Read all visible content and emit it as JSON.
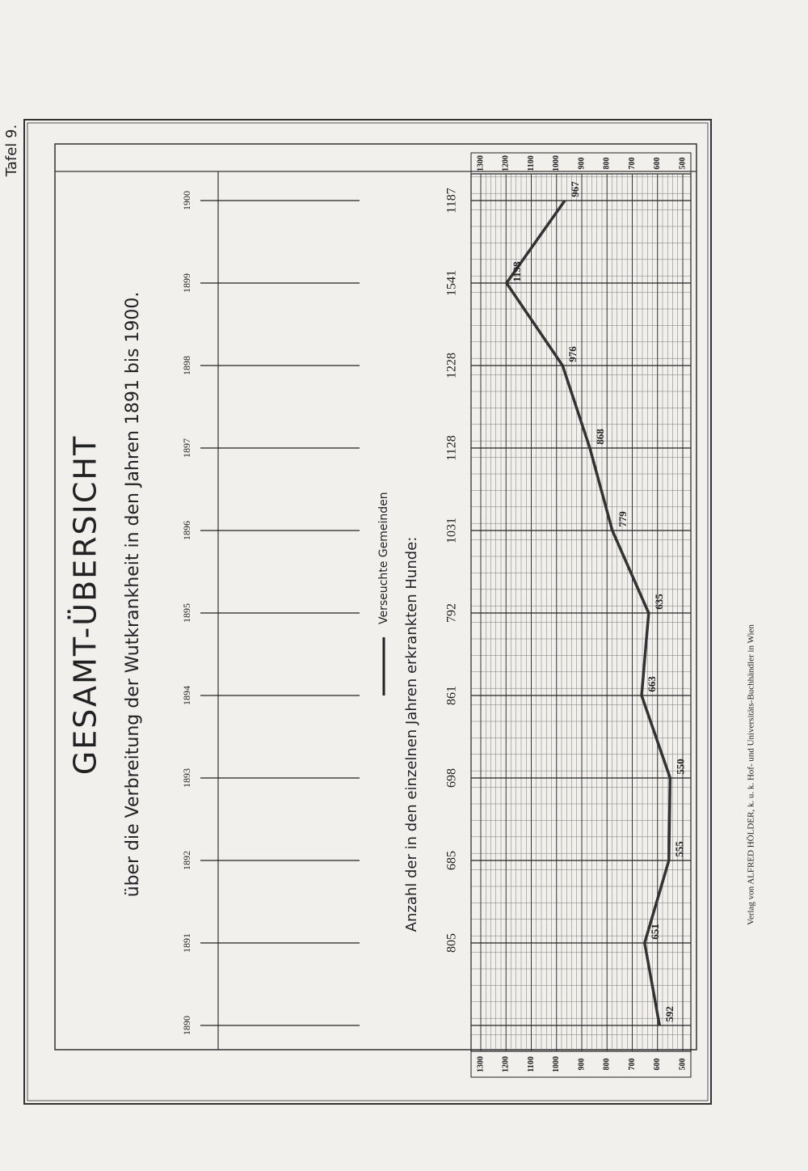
{
  "tafel": "Tafel 9.",
  "chart_data": {
    "type": "line",
    "title": "GESAMT-ÜBERSICHT",
    "subtitle": "über die Verbreitung der Wutkrankheit in den Jahren 1891 bis 1900.",
    "categories": [
      "1890",
      "1891",
      "1892",
      "1893",
      "1894",
      "1895",
      "1896",
      "1897",
      "1898",
      "1899",
      "1900"
    ],
    "series": [
      {
        "name": "Verseuchte Gemeinden",
        "color": "#333333",
        "values": [
          592,
          651,
          555,
          550,
          663,
          635,
          779,
          868,
          976,
          1198,
          967
        ]
      }
    ],
    "ylim": [
      500,
      1300
    ],
    "yticks": [
      500,
      600,
      700,
      800,
      900,
      1000,
      1100,
      1200,
      1300
    ],
    "grid": true,
    "counts_label": "Anzahl der in den einzelnen Jahren erkrankten Hunde:",
    "counts": [
      null,
      805,
      685,
      698,
      861,
      792,
      1031,
      1128,
      1228,
      1541,
      1187
    ]
  },
  "publisher": "Verlag von ALFRED HÖLDER, k. u. k. Hof- und Universitäts-Buchhändler in Wien"
}
